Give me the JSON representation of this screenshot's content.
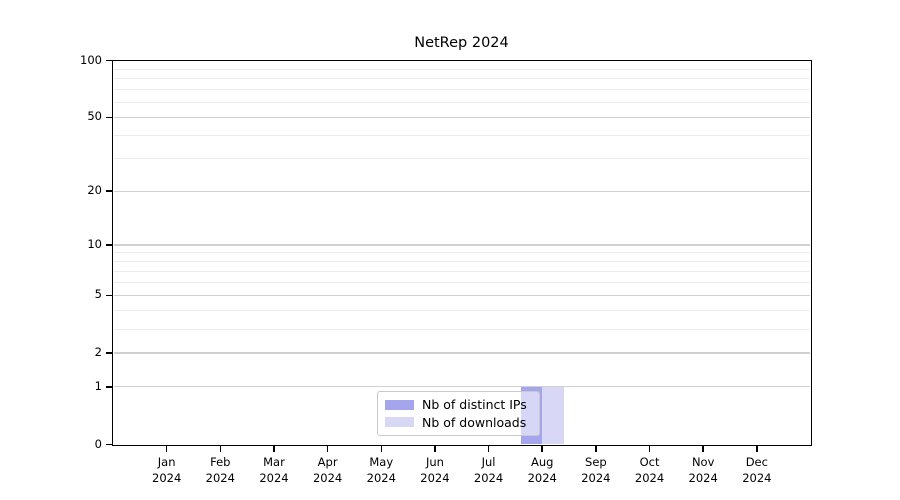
{
  "chart_data": {
    "type": "bar",
    "title": "NetRep 2024",
    "categories": [
      "Jan",
      "Feb",
      "Mar",
      "Apr",
      "May",
      "Jun",
      "Jul",
      "Aug",
      "Sep",
      "Oct",
      "Nov",
      "Dec"
    ],
    "x_sublabel": "2024",
    "series": [
      {
        "name": "Nb of distinct IPs",
        "color": "#a5a5ee",
        "values": [
          0,
          0,
          0,
          0,
          0,
          0,
          0,
          1,
          0,
          0,
          0,
          0
        ]
      },
      {
        "name": "Nb of downloads",
        "color": "#d8d8f6",
        "values": [
          0,
          0,
          0,
          0,
          0,
          0,
          0,
          1,
          0,
          0,
          0,
          0
        ]
      }
    ],
    "y_axis": {
      "scale": "log1p",
      "range": [
        0,
        100
      ],
      "ticks": [
        0,
        1,
        2,
        5,
        10,
        20,
        50,
        100
      ],
      "minor_ticks": [
        3,
        4,
        6,
        7,
        8,
        9,
        30,
        40,
        60,
        70,
        80,
        90
      ]
    },
    "legend": {
      "position": "lower-center"
    },
    "grid": {
      "major": true,
      "minor": true
    }
  },
  "colors": {
    "background": "#ffffff",
    "major_grid": "#d0d0d0",
    "minor_grid": "#ececec",
    "axis": "#000000",
    "tick": "#000000",
    "text": "#000000",
    "legend_border": "#c9c9c9"
  }
}
